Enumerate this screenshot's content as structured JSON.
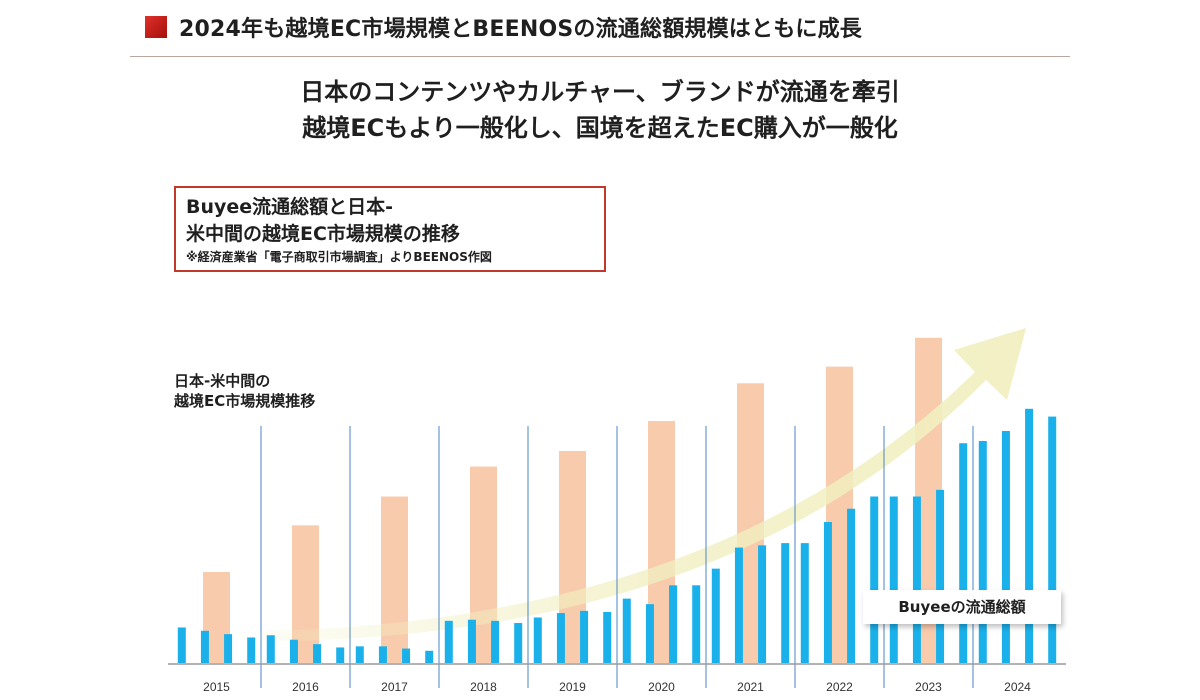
{
  "header": {
    "title": "2024年も越境EC市場規模とBEENOSの流通総額規模はともに成長"
  },
  "headline": {
    "line1": "日本のコンテンツやカルチャー、ブランドが流通を牽引",
    "line2": "越境ECもより一般化し、国境を超えたEC購入が一般化"
  },
  "legend_box": {
    "line1": "Buyee流通総額と日本-",
    "line2": "米中間の越境EC市場規模の推移",
    "note": "※経済産業省「電子商取引市場調査」よりBEENOS作図"
  },
  "market_label": {
    "line1": "日本-米中間の",
    "line2": "越境EC市場規模推移"
  },
  "buyee_label": "Buyeeの流通総額",
  "colors": {
    "market_bar": "#f8cbad",
    "buyee_bar": "#1ab0ea",
    "divider": "#4a86c8",
    "arrow": "#f1efc0",
    "title_square": "#c8201a",
    "box_border": "#c0392b"
  },
  "chart_data": {
    "type": "bar",
    "title": "",
    "xlabel": "",
    "ylabel": "",
    "categories": [
      "2015",
      "2016",
      "2017",
      "2018",
      "2019",
      "2020",
      "2021",
      "2022",
      "2023",
      "2024"
    ],
    "grid": false,
    "y_axis_labels": false,
    "series": [
      {
        "name": "日本-米中間の越境EC市場規模推移",
        "values": [
          82,
          124,
          150,
          177,
          191,
          218,
          252,
          267,
          293,
          null
        ]
      },
      {
        "name": "Buyeeの流通総額",
        "quarterly": true,
        "values": [
          [
            32,
            29,
            26,
            23
          ],
          [
            25,
            21,
            17,
            14
          ],
          [
            15,
            15,
            13,
            11
          ],
          [
            38,
            39,
            38,
            36
          ],
          [
            41,
            45,
            47,
            46
          ],
          [
            58,
            53,
            70,
            70
          ],
          [
            85,
            104,
            106,
            108
          ],
          [
            108,
            127,
            139,
            150
          ],
          [
            150,
            150,
            156,
            198
          ],
          [
            200,
            209,
            229,
            222
          ]
        ]
      }
    ],
    "annotation": "upward growth arrow"
  }
}
